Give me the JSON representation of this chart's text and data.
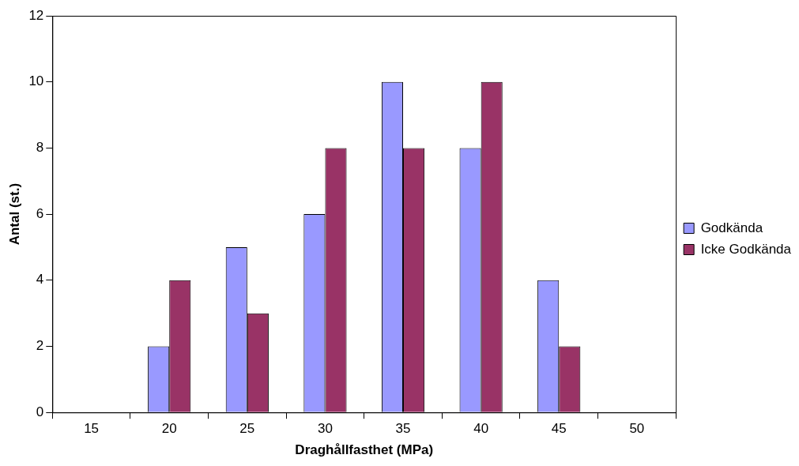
{
  "chart_data": {
    "type": "bar",
    "xlabel": "Draghållfasthet (MPa)",
    "ylabel": "Antal (st.)",
    "categories": [
      "15",
      "20",
      "25",
      "30",
      "35",
      "40",
      "45",
      "50"
    ],
    "series": [
      {
        "name": "Godkända",
        "color": "#9999ff",
        "values": [
          0,
          2,
          5,
          6,
          10,
          8,
          4,
          0
        ]
      },
      {
        "name": "Icke Godkända",
        "color": "#993366",
        "values": [
          0,
          4,
          3,
          8,
          8,
          10,
          2,
          0
        ]
      }
    ],
    "ylim": [
      0,
      12
    ],
    "yticks": [
      0,
      2,
      4,
      6,
      8,
      10,
      12
    ],
    "grid": false,
    "legend": "right"
  }
}
